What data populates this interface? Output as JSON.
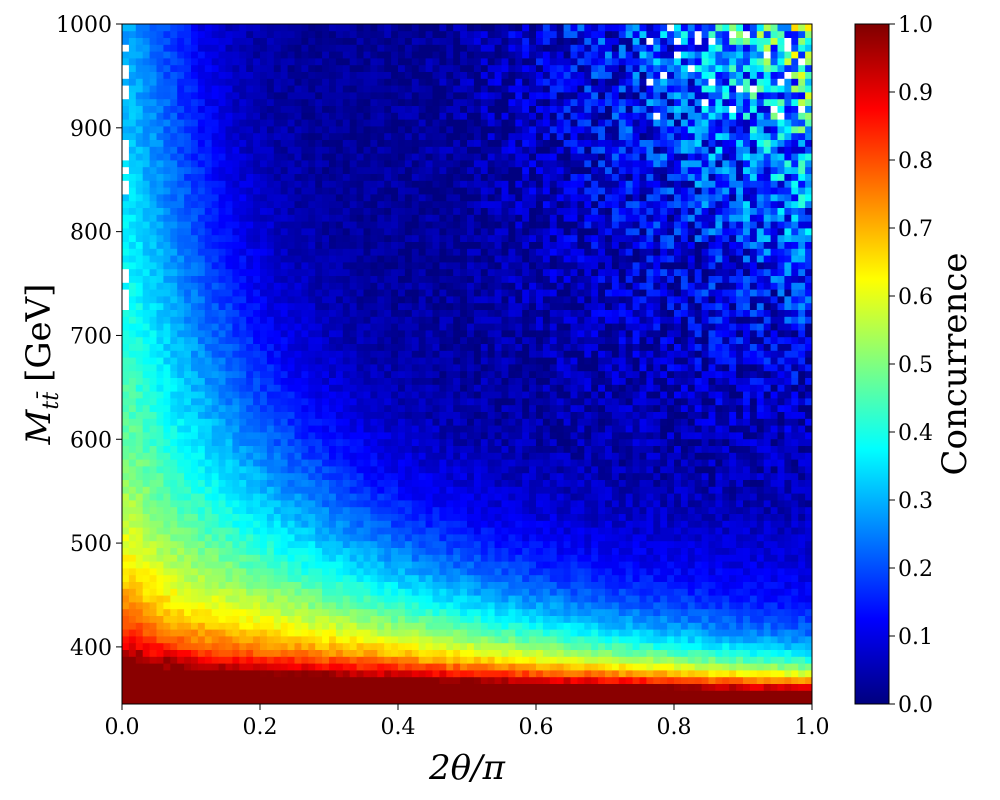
{
  "chart_data": {
    "type": "heatmap",
    "xlabel": "2θ/π",
    "ylabel_main": "M",
    "ylabel_sub": "tt̄",
    "ylabel_unit": "[GeV]",
    "xlim": [
      0.0,
      1.0
    ],
    "ylim": [
      345,
      1000
    ],
    "x_ticks": [
      0.0,
      0.2,
      0.4,
      0.6,
      0.8,
      1.0
    ],
    "x_tick_labels": [
      "0.0",
      "0.2",
      "0.4",
      "0.6",
      "0.8",
      "1.0"
    ],
    "y_ticks": [
      400,
      500,
      600,
      700,
      800,
      900,
      1000
    ],
    "y_tick_labels": [
      "400",
      "500",
      "600",
      "700",
      "800",
      "900",
      "1000"
    ],
    "x_bins": 100,
    "y_bins": 100,
    "colorbar": {
      "label": "Concurrence",
      "range": [
        0.0,
        1.0
      ],
      "ticks": [
        0.0,
        0.1,
        0.2,
        0.3,
        0.4,
        0.5,
        0.6,
        0.7,
        0.8,
        0.9,
        1.0
      ],
      "tick_labels": [
        "0.0",
        "0.1",
        "0.2",
        "0.3",
        "0.4",
        "0.5",
        "0.6",
        "0.7",
        "0.8",
        "0.9",
        "1.0"
      ],
      "colormap": "jet"
    },
    "grid": false,
    "threshold_mass": 345,
    "description_of_structure": [
      "Maximum concurrence (~0.8-1.0) near the production threshold M ≈ 345-370 GeV for all angles",
      "Secondary maximum (~0.3-0.6) for small angles 2θ/π < 0.1 at all masses",
      "High-mass region M > 800 GeV with 2θ/π > 0.6 reaches 0.3-0.5",
      "Concurrence near 0 in the intermediate region (M 450-800 GeV, 2θ/π 0.2-0.6)"
    ]
  }
}
